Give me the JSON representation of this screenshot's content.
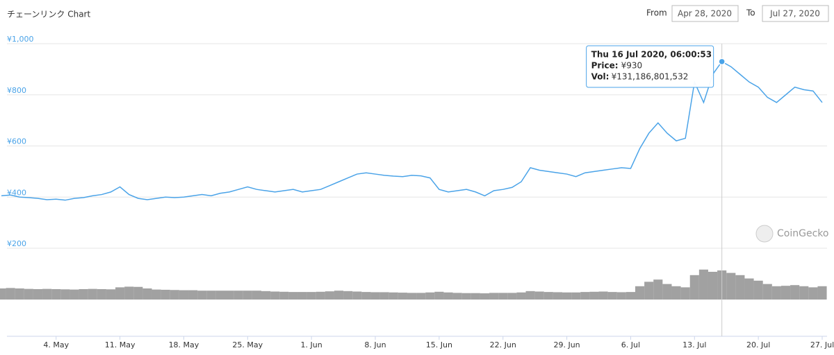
{
  "chart_data": {
    "type": "line",
    "title": "チェーンリンク Chart",
    "range": {
      "from_label": "From",
      "from": "Apr 28, 2020",
      "to_label": "To",
      "to": "Jul 27, 2020"
    },
    "watermark": "CoinGecko",
    "x": [
      "2020-04-28",
      "2020-04-29",
      "2020-04-30",
      "2020-05-01",
      "2020-05-02",
      "2020-05-03",
      "2020-05-04",
      "2020-05-05",
      "2020-05-06",
      "2020-05-07",
      "2020-05-08",
      "2020-05-09",
      "2020-05-10",
      "2020-05-11",
      "2020-05-12",
      "2020-05-13",
      "2020-05-14",
      "2020-05-15",
      "2020-05-16",
      "2020-05-17",
      "2020-05-18",
      "2020-05-19",
      "2020-05-20",
      "2020-05-21",
      "2020-05-22",
      "2020-05-23",
      "2020-05-24",
      "2020-05-25",
      "2020-05-26",
      "2020-05-27",
      "2020-05-28",
      "2020-05-29",
      "2020-05-30",
      "2020-05-31",
      "2020-06-01",
      "2020-06-02",
      "2020-06-03",
      "2020-06-04",
      "2020-06-05",
      "2020-06-06",
      "2020-06-07",
      "2020-06-08",
      "2020-06-09",
      "2020-06-10",
      "2020-06-11",
      "2020-06-12",
      "2020-06-13",
      "2020-06-14",
      "2020-06-15",
      "2020-06-16",
      "2020-06-17",
      "2020-06-18",
      "2020-06-19",
      "2020-06-20",
      "2020-06-21",
      "2020-06-22",
      "2020-06-23",
      "2020-06-24",
      "2020-06-25",
      "2020-06-26",
      "2020-06-27",
      "2020-06-28",
      "2020-06-29",
      "2020-06-30",
      "2020-07-01",
      "2020-07-02",
      "2020-07-03",
      "2020-07-04",
      "2020-07-05",
      "2020-07-06",
      "2020-07-07",
      "2020-07-08",
      "2020-07-09",
      "2020-07-10",
      "2020-07-11",
      "2020-07-12",
      "2020-07-13",
      "2020-07-14",
      "2020-07-15",
      "2020-07-16",
      "2020-07-17",
      "2020-07-18",
      "2020-07-19",
      "2020-07-20",
      "2020-07-21",
      "2020-07-22",
      "2020-07-23",
      "2020-07-24",
      "2020-07-25",
      "2020-07-26",
      "2020-07-27"
    ],
    "series": [
      {
        "color": "#4aa3e8",
        "values": [
          405,
          408,
          400,
          398,
          395,
          390,
          392,
          388,
          395,
          398,
          405,
          410,
          420,
          440,
          410,
          395,
          390,
          395,
          400,
          398,
          400,
          405,
          410,
          405,
          415,
          420,
          430,
          440,
          430,
          425,
          420,
          425,
          430,
          420,
          425,
          430,
          445,
          460,
          475,
          490,
          495,
          490,
          485,
          482,
          480,
          485,
          483,
          475,
          430,
          420,
          425,
          430,
          420,
          405,
          425,
          430,
          438,
          460,
          515,
          505,
          500,
          495,
          490,
          480,
          495,
          500,
          505,
          510,
          515,
          512,
          590,
          650,
          690,
          650,
          620,
          630,
          850,
          770,
          880,
          930,
          910,
          880,
          850,
          830,
          790,
          770,
          800,
          830,
          820,
          815,
          770
        ]
      },
      {
        "color": "#8a8a8a",
        "axis": "y2",
        "values": [
          50000000000,
          52000000000,
          50000000000,
          48000000000,
          47000000000,
          48000000000,
          47000000000,
          46000000000,
          45000000000,
          47000000000,
          48000000000,
          47000000000,
          46000000000,
          55000000000,
          58000000000,
          57000000000,
          50000000000,
          45000000000,
          44000000000,
          43000000000,
          42000000000,
          42000000000,
          40000000000,
          40000000000,
          40000000000,
          40000000000,
          40000000000,
          40000000000,
          40000000000,
          38000000000,
          36000000000,
          35000000000,
          34000000000,
          34000000000,
          34000000000,
          35000000000,
          37000000000,
          40000000000,
          38000000000,
          36000000000,
          34000000000,
          33000000000,
          33000000000,
          32000000000,
          31000000000,
          30000000000,
          30000000000,
          32000000000,
          35000000000,
          32000000000,
          30000000000,
          29000000000,
          29000000000,
          28000000000,
          30000000000,
          30000000000,
          30000000000,
          32000000000,
          38000000000,
          36000000000,
          34000000000,
          33000000000,
          32000000000,
          32000000000,
          34000000000,
          35000000000,
          36000000000,
          34000000000,
          33000000000,
          34000000000,
          60000000000,
          80000000000,
          90000000000,
          70000000000,
          60000000000,
          55000000000,
          110000000000,
          135000000000,
          125000000000,
          131186801532,
          120000000000,
          110000000000,
          95000000000,
          85000000000,
          70000000000,
          60000000000,
          62000000000,
          65000000000,
          60000000000,
          55000000000,
          60000000000
        ]
      }
    ],
    "xlim": [
      "2020-04-28",
      "2020-07-27"
    ],
    "xticks": [
      {
        "value": "2020-05-04",
        "label": "4. May"
      },
      {
        "value": "2020-05-11",
        "label": "11. May"
      },
      {
        "value": "2020-05-18",
        "label": "18. May"
      },
      {
        "value": "2020-05-25",
        "label": "25. May"
      },
      {
        "value": "2020-06-01",
        "label": "1. Jun"
      },
      {
        "value": "2020-06-08",
        "label": "8. Jun"
      },
      {
        "value": "2020-06-15",
        "label": "15. Jun"
      },
      {
        "value": "2020-06-22",
        "label": "22. Jun"
      },
      {
        "value": "2020-06-29",
        "label": "29. Jun"
      },
      {
        "value": "2020-07-06",
        "label": "6. Jul"
      },
      {
        "value": "2020-07-13",
        "label": "13. Jul"
      },
      {
        "value": "2020-07-20",
        "label": "20. Jul"
      },
      {
        "value": "2020-07-27",
        "label": "27. Jul"
      }
    ],
    "ylim": [
      200,
      1000
    ],
    "yticks": [
      {
        "value": 200,
        "label": "¥200"
      },
      {
        "value": 400,
        "label": "¥400"
      },
      {
        "value": 600,
        "label": "¥600"
      },
      {
        "value": 800,
        "label": "¥800"
      },
      {
        "value": 1000,
        "label": "¥1,000"
      }
    ],
    "y2lim": [
      0,
      150000000000
    ],
    "grid": true,
    "tooltip": {
      "index": 79,
      "title": "Thu 16 Jul 2020, 06:00:53",
      "price_label": "Price:",
      "price": "¥930",
      "vol_label": "Vol:",
      "vol": "¥131,186,801,532"
    }
  }
}
